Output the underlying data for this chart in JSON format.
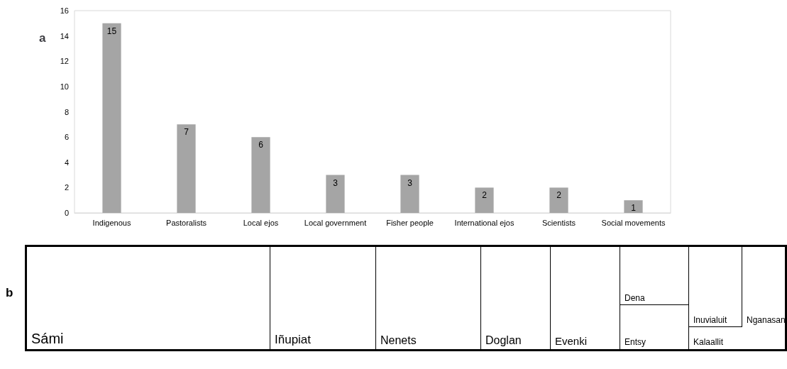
{
  "chart_data": [
    {
      "type": "bar",
      "title": "a",
      "categories": [
        "Indigenous",
        "Pastoralists",
        "Local ejos",
        "Local government",
        "Fisher people",
        "International ejos",
        "Scientists",
        "Social movements"
      ],
      "values": [
        15,
        7,
        6,
        3,
        3,
        2,
        2,
        1
      ],
      "color": "#a5a5a5",
      "ylim": [
        0,
        16
      ],
      "yticks": [
        0,
        2,
        4,
        6,
        8,
        10,
        12,
        14,
        16
      ],
      "data_labels": true
    },
    {
      "type": "other",
      "title": "b",
      "categories": [
        "Sámi",
        "Iñupiat",
        "Nenets",
        "Doglan",
        "Evenki",
        "Dena",
        "Entsy",
        "Inuvialuit",
        "Kalaallit",
        "Nganasan"
      ]
    }
  ]
}
